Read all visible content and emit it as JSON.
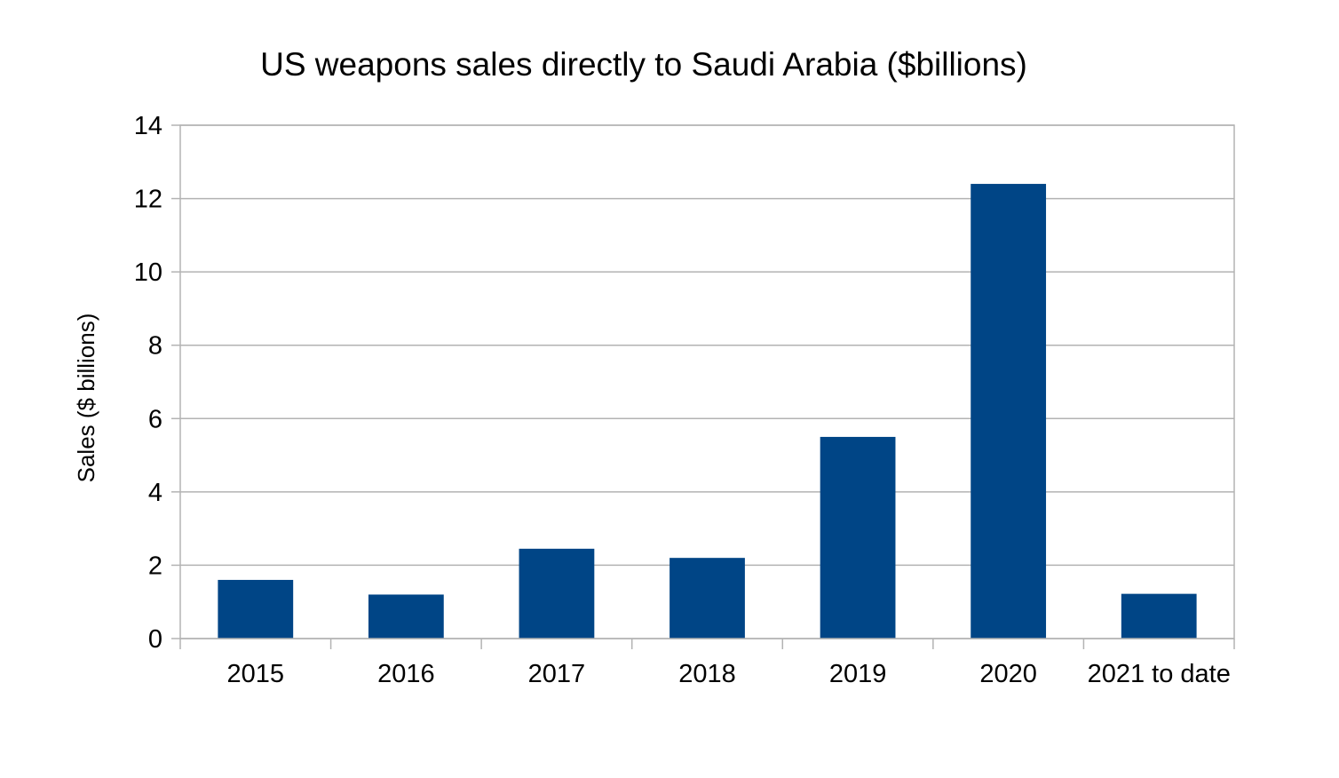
{
  "chart_data": {
    "type": "bar",
    "title": "US weapons sales directly to Saudi Arabia ($billions)",
    "xlabel": "",
    "ylabel": "Sales ($ billions)",
    "categories": [
      "2015",
      "2016",
      "2017",
      "2018",
      "2019",
      "2020",
      "2021 to date"
    ],
    "values": [
      1.6,
      1.2,
      2.45,
      2.2,
      5.5,
      12.4,
      1.22
    ],
    "ylim": [
      0,
      14
    ],
    "yticks": [
      0,
      2,
      4,
      6,
      8,
      10,
      12,
      14
    ],
    "grid": true,
    "legend": "none",
    "colors": {
      "bar": "#004586",
      "grid": "#b3b3b3",
      "axis": "#b3b3b3"
    }
  }
}
